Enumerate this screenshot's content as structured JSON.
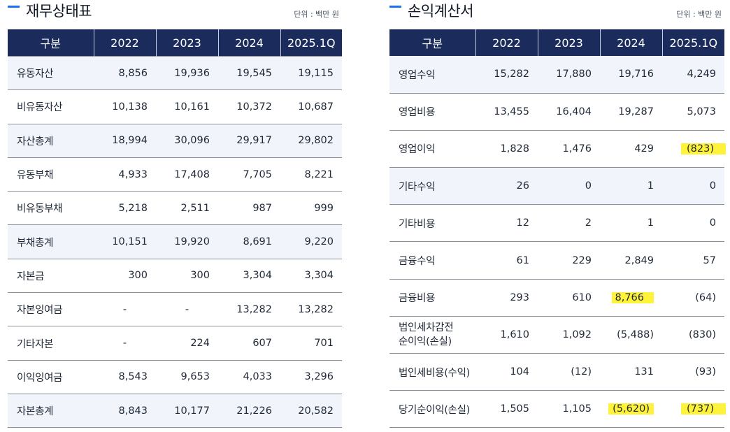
{
  "balance_sheet": {
    "title": "재무상태표",
    "unit": "단위 : 백만 원",
    "columns": [
      "구분",
      "2022",
      "2023",
      "2024",
      "2025.1Q"
    ],
    "rows": [
      {
        "label": "유동자산",
        "values": [
          "8,856",
          "19,936",
          "19,545",
          "19,115"
        ]
      },
      {
        "label": "비유동자산",
        "values": [
          "10,138",
          "10,161",
          "10,372",
          "10,687"
        ]
      },
      {
        "label": "자산총계",
        "values": [
          "18,994",
          "30,096",
          "29,917",
          "29,802"
        ]
      },
      {
        "label": "유동부채",
        "values": [
          "4,933",
          "17,408",
          "7,705",
          "8,221"
        ]
      },
      {
        "label": "비유동부채",
        "values": [
          "5,218",
          "2,511",
          "987",
          "999"
        ]
      },
      {
        "label": "부채총계",
        "values": [
          "10,151",
          "19,920",
          "8,691",
          "9,220"
        ]
      },
      {
        "label": "자본금",
        "values": [
          "300",
          "300",
          "3,304",
          "3,304"
        ]
      },
      {
        "label": "자본잉여금",
        "values": [
          "-",
          "-",
          "13,282",
          "13,282"
        ]
      },
      {
        "label": "기타자본",
        "values": [
          "-",
          "224",
          "607",
          "701"
        ]
      },
      {
        "label": "이익잉여금",
        "values": [
          "8,543",
          "9,653",
          "4,033",
          "3,296"
        ]
      },
      {
        "label": "자본총계",
        "values": [
          "8,843",
          "10,177",
          "21,226",
          "20,582"
        ]
      }
    ]
  },
  "income_statement": {
    "title": "손익계산서",
    "unit": "단위 : 백만 원",
    "columns": [
      "구분",
      "2022",
      "2023",
      "2024",
      "2025.1Q"
    ],
    "rows": [
      {
        "label": "영업수익",
        "values": [
          "15,282",
          "17,880",
          "19,716",
          "4,249"
        ]
      },
      {
        "label": "영업비용",
        "values": [
          "13,455",
          "16,404",
          "19,287",
          "5,073"
        ]
      },
      {
        "label": "영업이익",
        "values": [
          "1,828",
          "1,476",
          "429",
          "(823)"
        ]
      },
      {
        "label": "기타수익",
        "values": [
          "26",
          "0",
          "1",
          "0"
        ]
      },
      {
        "label": "기타비용",
        "values": [
          "12",
          "2",
          "1",
          "0"
        ]
      },
      {
        "label": "금융수익",
        "values": [
          "61",
          "229",
          "2,849",
          "57"
        ]
      },
      {
        "label": "금융비용",
        "values": [
          "293",
          "610",
          "8,766",
          "(64)"
        ]
      },
      {
        "label_line1": "법인세차감전",
        "label_line2": "순이익(손실)",
        "values": [
          "1,610",
          "1,092",
          "(5,488)",
          "(830)"
        ]
      },
      {
        "label": "법인세비용(수익)",
        "values": [
          "104",
          "(12)",
          "131",
          "(93)"
        ]
      },
      {
        "label": "당기순이익(손실)",
        "values": [
          "1,505",
          "1,105",
          "(5,620)",
          "(737)"
        ]
      }
    ],
    "highlight_color": "#fff23a"
  },
  "colors": {
    "header_bg": "#1b2c5c",
    "accent": "#1d6ff2",
    "row_shade": "#f1f5fb"
  }
}
